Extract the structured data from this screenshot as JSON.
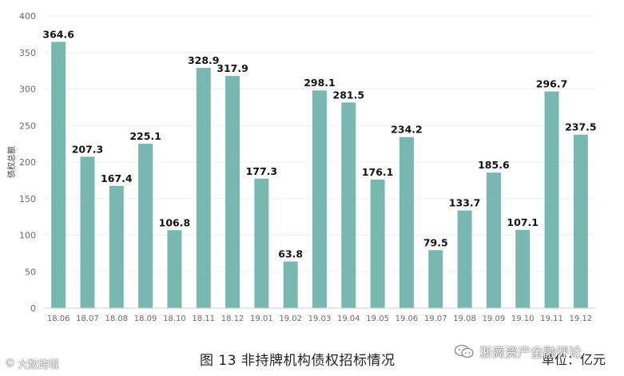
{
  "chart_data": {
    "type": "bar",
    "ylabel": "债权总额",
    "ylim": [
      0,
      400
    ],
    "yticks": [
      0,
      50,
      100,
      150,
      200,
      250,
      300,
      350,
      400
    ],
    "grid": true,
    "categories": [
      "18.06",
      "18.07",
      "18.08",
      "18.09",
      "18.10",
      "18.11",
      "18.12",
      "19.01",
      "19.02",
      "19.03",
      "19.04",
      "19.05",
      "19.06",
      "19.07",
      "19.08",
      "19.09",
      "19.10",
      "19.11",
      "19.12"
    ],
    "values": [
      364.6,
      207.3,
      167.4,
      225.1,
      106.8,
      328.9,
      317.9,
      177.3,
      63.8,
      298.1,
      281.5,
      176.1,
      234.2,
      79.5,
      133.7,
      185.6,
      107.1,
      296.7,
      237.5
    ],
    "value_labels": [
      "364.6",
      "207.3",
      "167.4",
      "225.1",
      "106.8",
      "328.9",
      "317.9",
      "177.3",
      "63.8",
      "298.1",
      "281.5",
      "176.1",
      "234.2",
      "79.5",
      "133.7",
      "185.6",
      "107.1",
      "296.7",
      "237.5"
    ],
    "bar_color": "#79b8b0"
  },
  "caption": "图 13  非持牌机构债权招标情况",
  "unit": "单位：亿元",
  "watermarks": {
    "left": "大数跨境",
    "left_icon": "copyright-icon",
    "right": "浙商资产金融评论",
    "right_icon": "wechat-icon"
  }
}
